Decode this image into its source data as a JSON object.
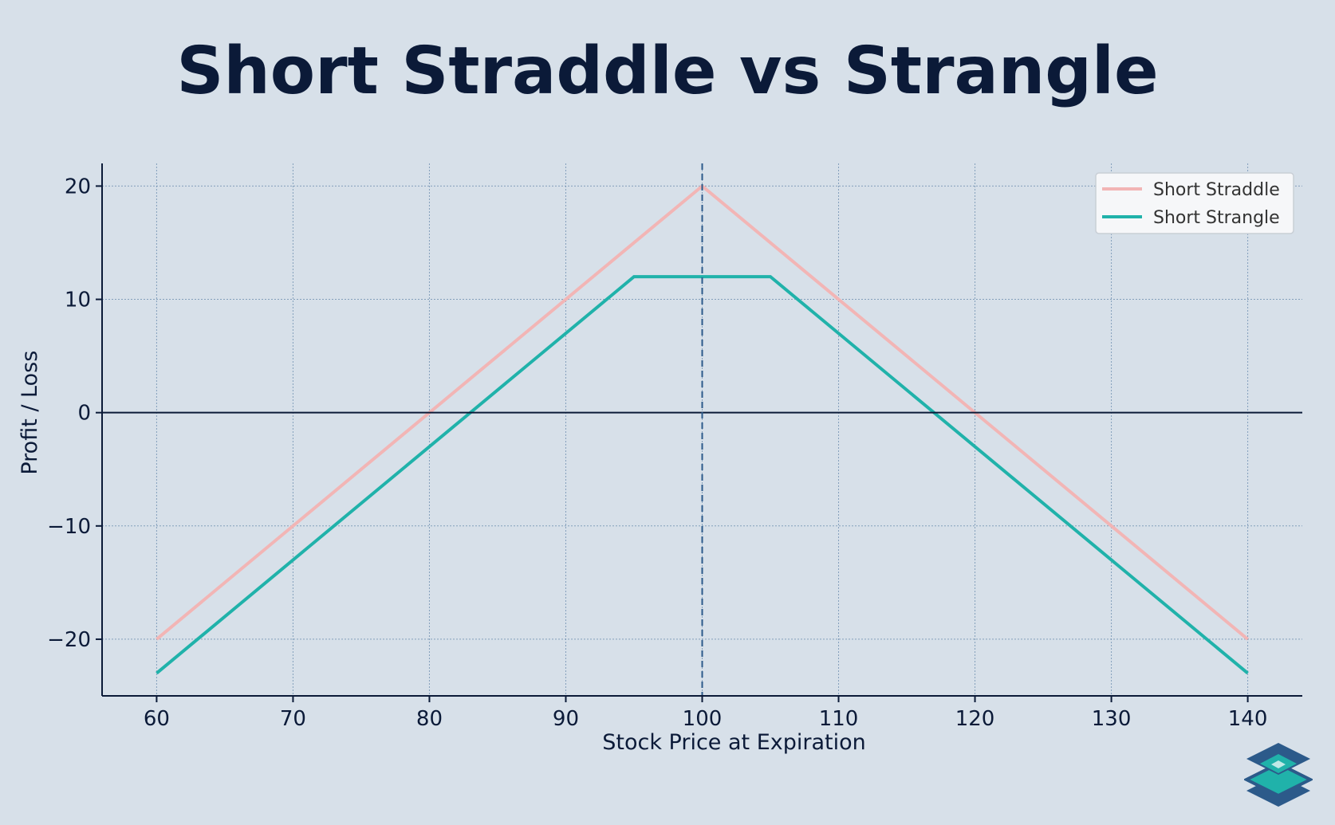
{
  "title": "Short Straddle vs Strangle",
  "colors": {
    "background": "#d7e0e9",
    "title": "#0b1a38",
    "straddle": "#f2b5b5",
    "strangle": "#20b2aa",
    "grid": "#6f8fb0",
    "strike_line": "#2c5a8a",
    "axis": "#0b1a38"
  },
  "chart_data": {
    "type": "line",
    "xlabel": "Stock Price at Expiration",
    "ylabel": "Profit / Loss",
    "xlim": [
      56,
      144
    ],
    "ylim": [
      -25,
      22
    ],
    "xticks": [
      60,
      70,
      80,
      90,
      100,
      110,
      120,
      130,
      140
    ],
    "xtick_labels": [
      "60",
      "70",
      "80",
      "90",
      "100",
      "110",
      "120",
      "130",
      "140"
    ],
    "yticks": [
      -20,
      -10,
      0,
      10,
      20
    ],
    "ytick_labels": [
      "−20",
      "−10",
      "0",
      "10",
      "20"
    ],
    "grid": true,
    "zero_line": 0,
    "strike_line_x": 100,
    "legend_position": "top-right",
    "series": [
      {
        "name": "Short Straddle",
        "color": "#f2b5b5",
        "x": [
          60,
          100,
          140
        ],
        "y": [
          -20,
          20,
          -20
        ]
      },
      {
        "name": "Short Strangle",
        "color": "#20b2aa",
        "x": [
          60,
          95,
          105,
          140
        ],
        "y": [
          -23,
          12,
          12,
          -23
        ]
      }
    ]
  },
  "logo_icon": "layers-icon"
}
